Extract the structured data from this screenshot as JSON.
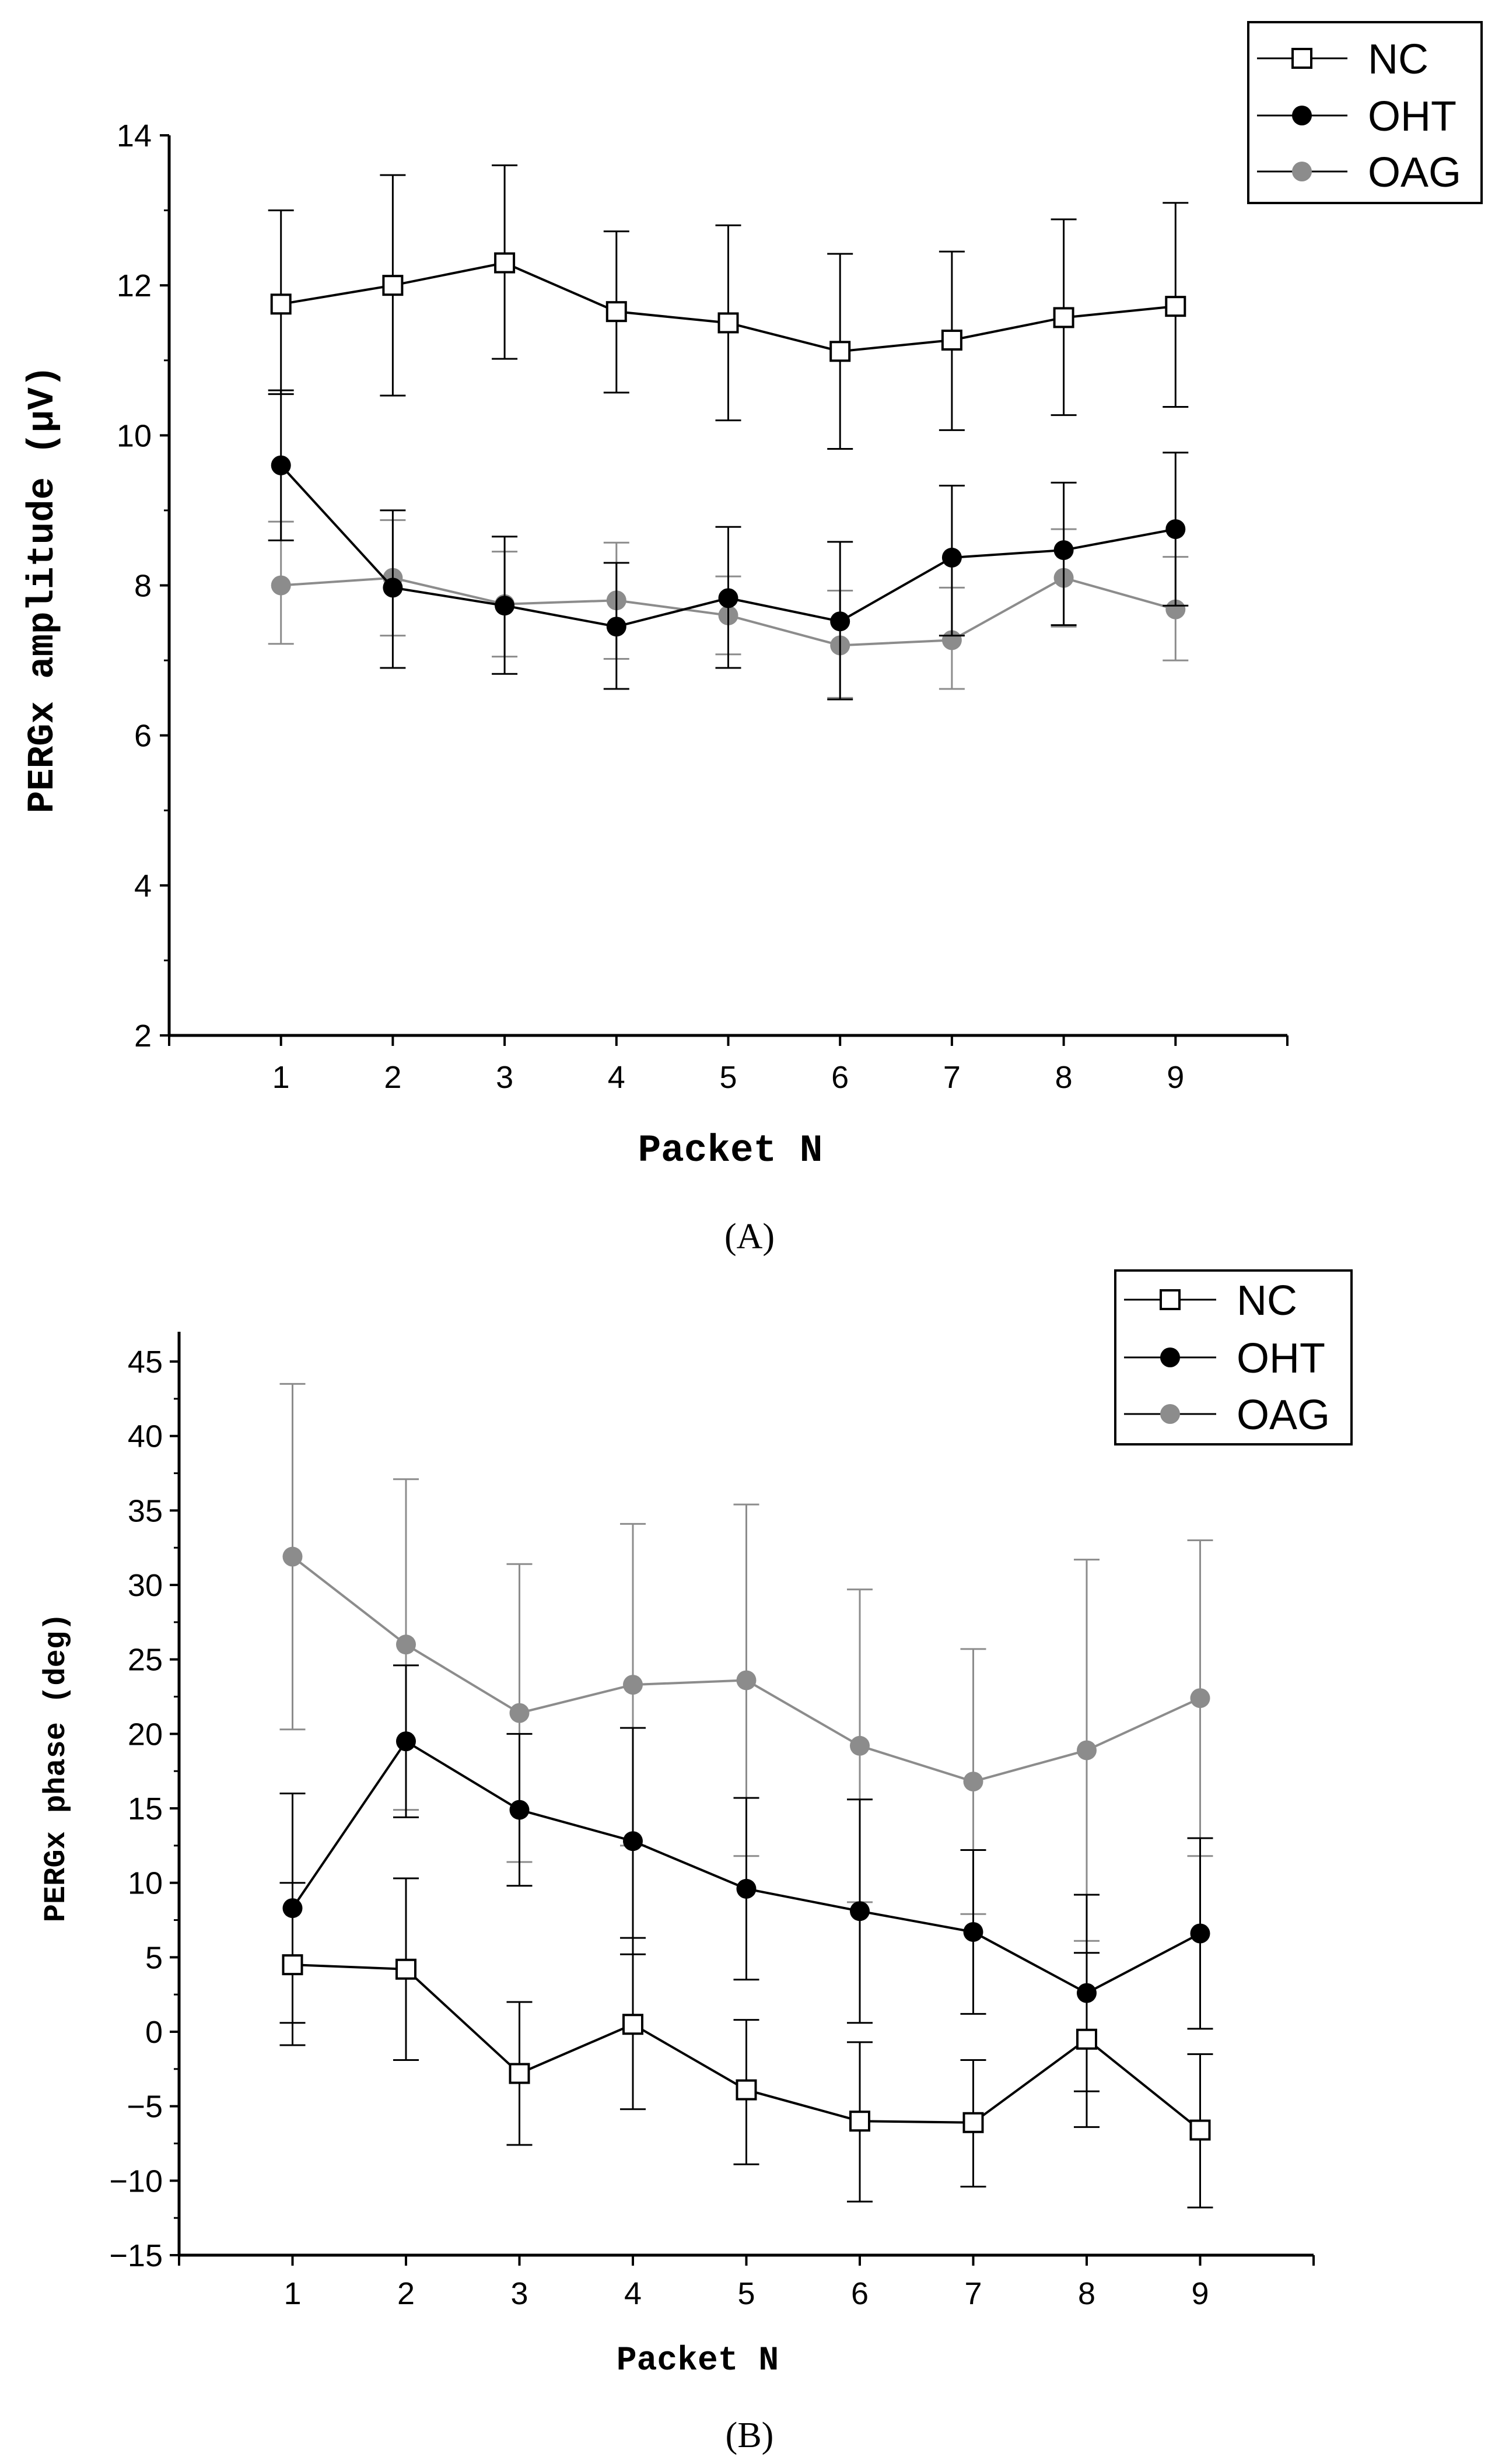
{
  "chart_data": [
    {
      "type": "line",
      "panel": "A",
      "panel_label": "(A)",
      "xlabel": "Packet N",
      "ylabel": "PERGx amplitude (µV)",
      "x": [
        1,
        2,
        3,
        4,
        5,
        6,
        7,
        8,
        9
      ],
      "xlim": [
        0,
        10
      ],
      "ylim": [
        2,
        14
      ],
      "y_ticks": [
        2,
        4,
        6,
        8,
        10,
        12,
        14
      ],
      "y_tick_labels": [
        "2",
        "4",
        "6",
        "8",
        "10",
        "12",
        "14"
      ],
      "x_tick_labels": [
        "1",
        "2",
        "3",
        "4",
        "5",
        "6",
        "7",
        "8",
        "9"
      ],
      "legend": "top-right",
      "series": [
        {
          "name": "NC",
          "marker": "open-square",
          "color": "#000000",
          "values": [
            11.75,
            12.0,
            12.3,
            11.65,
            11.5,
            11.12,
            11.27,
            11.57,
            11.72
          ],
          "error_upper": [
            13.0,
            13.47,
            13.6,
            12.72,
            12.8,
            12.42,
            12.45,
            12.88,
            13.1
          ],
          "error_lower": [
            10.55,
            10.53,
            11.02,
            10.57,
            10.2,
            9.82,
            10.07,
            10.27,
            10.38
          ]
        },
        {
          "name": "OHT",
          "marker": "filled-circle",
          "color": "#000000",
          "values": [
            9.6,
            7.97,
            7.73,
            7.45,
            7.83,
            7.52,
            8.37,
            8.47,
            8.75
          ],
          "error_upper": [
            10.6,
            9.0,
            8.65,
            8.3,
            8.78,
            8.58,
            9.33,
            9.37,
            9.77
          ],
          "error_lower": [
            8.6,
            6.9,
            6.82,
            6.62,
            6.9,
            6.48,
            7.33,
            7.47,
            7.73
          ]
        },
        {
          "name": "OAG",
          "marker": "filled-circle",
          "color": "#8c8c8c",
          "values": [
            8.0,
            8.1,
            7.75,
            7.8,
            7.6,
            7.2,
            7.27,
            8.1,
            7.68
          ],
          "error_upper": [
            8.85,
            8.87,
            8.45,
            8.57,
            8.12,
            7.93,
            7.97,
            8.75,
            8.38
          ],
          "error_lower": [
            7.22,
            7.33,
            7.05,
            7.02,
            7.08,
            6.5,
            6.62,
            7.45,
            7.0
          ]
        }
      ]
    },
    {
      "type": "line",
      "panel": "B",
      "panel_label": "(B)",
      "xlabel": "Packet N",
      "ylabel": "PERGx phase (deg)",
      "x": [
        1,
        2,
        3,
        4,
        5,
        6,
        7,
        8,
        9
      ],
      "xlim": [
        0,
        10
      ],
      "ylim": [
        -15,
        47
      ],
      "y_ticks": [
        -15,
        -10,
        -5,
        0,
        5,
        10,
        15,
        20,
        25,
        30,
        35,
        40,
        45
      ],
      "y_tick_labels": [
        "−15",
        "−10",
        "−5",
        "0",
        "5",
        "10",
        "15",
        "20",
        "25",
        "30",
        "35",
        "40",
        "45"
      ],
      "x_tick_labels": [
        "1",
        "2",
        "3",
        "4",
        "5",
        "6",
        "7",
        "8",
        "9"
      ],
      "legend": "top-right",
      "series": [
        {
          "name": "NC",
          "marker": "open-square",
          "color": "#000000",
          "values": [
            4.5,
            4.2,
            -2.8,
            0.5,
            -3.9,
            -6.0,
            -6.1,
            -0.5,
            -6.6
          ],
          "error_upper": [
            10.0,
            10.3,
            2.0,
            6.3,
            0.8,
            -0.7,
            -1.9,
            5.3,
            -1.5
          ],
          "error_lower": [
            -0.9,
            -1.9,
            -7.6,
            -5.2,
            -8.9,
            -11.4,
            -10.4,
            -6.4,
            -11.8
          ]
        },
        {
          "name": "OHT",
          "marker": "filled-circle",
          "color": "#000000",
          "values": [
            8.3,
            19.5,
            14.9,
            12.8,
            9.6,
            8.1,
            6.7,
            2.6,
            6.6
          ],
          "error_upper": [
            16.0,
            24.6,
            20.0,
            20.4,
            15.7,
            15.6,
            12.2,
            9.2,
            13.0
          ],
          "error_lower": [
            0.6,
            14.4,
            9.8,
            5.2,
            3.5,
            0.6,
            1.2,
            -4.0,
            0.2
          ]
        },
        {
          "name": "OAG",
          "marker": "filled-circle",
          "color": "#8c8c8c",
          "values": [
            31.9,
            26.0,
            21.4,
            23.3,
            23.6,
            19.2,
            16.8,
            18.9,
            22.4
          ],
          "error_upper": [
            43.5,
            37.1,
            31.4,
            34.1,
            35.4,
            29.7,
            25.7,
            31.7,
            33.0
          ],
          "error_lower": [
            20.3,
            14.9,
            11.4,
            12.5,
            11.8,
            8.7,
            7.9,
            6.1,
            11.8
          ]
        }
      ]
    }
  ]
}
